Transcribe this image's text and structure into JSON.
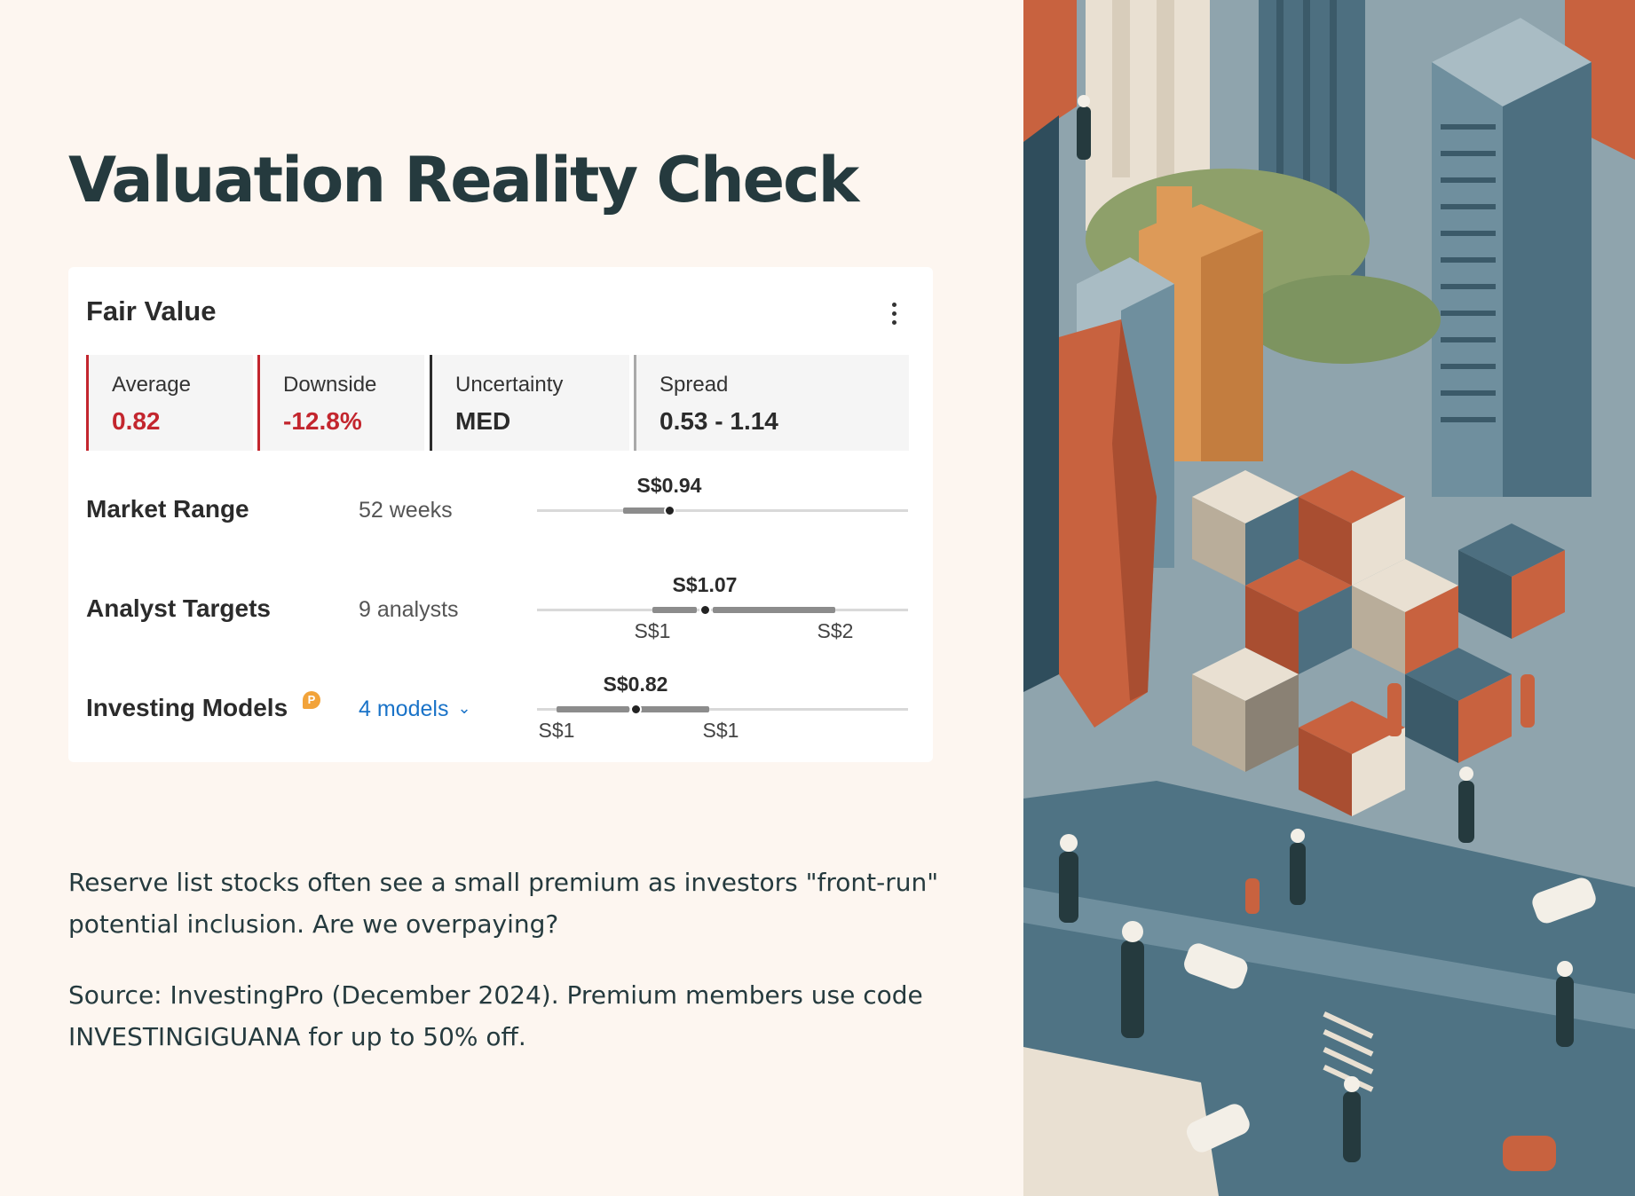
{
  "page": {
    "title": "Valuation Reality Check",
    "paragraph": "Reserve list stocks often see a small premium as investors \"front-run\" potential inclusion. Are we overpaying?",
    "source": "Source: InvestingPro (December 2024). Premium members use code INVESTINGIGUANA for up to 50% off."
  },
  "card": {
    "title": "Fair Value",
    "metrics": [
      {
        "label": "Average",
        "value": "0.82",
        "accent": "#c3262e",
        "value_color": "#c3262e"
      },
      {
        "label": "Downside",
        "value": "-12.8%",
        "accent": "#c3262e",
        "value_color": "#c3262e"
      },
      {
        "label": "Uncertainty",
        "value": "MED",
        "accent": "#2b2b2b",
        "value_color": "#2b2b2b"
      },
      {
        "label": "Spread",
        "value": "0.53 - 1.14",
        "accent": "#aaaaaa",
        "value_color": "#2b2b2b"
      }
    ],
    "rows": [
      {
        "label": "Market Range",
        "sub": "52 weeks",
        "value": "S$0.94",
        "ticks": []
      },
      {
        "label": "Analyst Targets",
        "sub": "9 analysts",
        "value": "S$1.07",
        "ticks": [
          "S$1",
          "S$2"
        ]
      },
      {
        "label": "Investing Models",
        "sub": "4 models",
        "value": "S$0.82",
        "ticks": [
          "S$1",
          "S$1"
        ]
      }
    ],
    "pro_badge_icon": "investingpro-badge-icon",
    "more_icon": "more-vertical-icon"
  },
  "illustration": {
    "icon": "city-street-illustration",
    "colors": [
      "#c8623f",
      "#4d6f80",
      "#8fa4ad",
      "#e9e0d2",
      "#dd9a58"
    ]
  }
}
